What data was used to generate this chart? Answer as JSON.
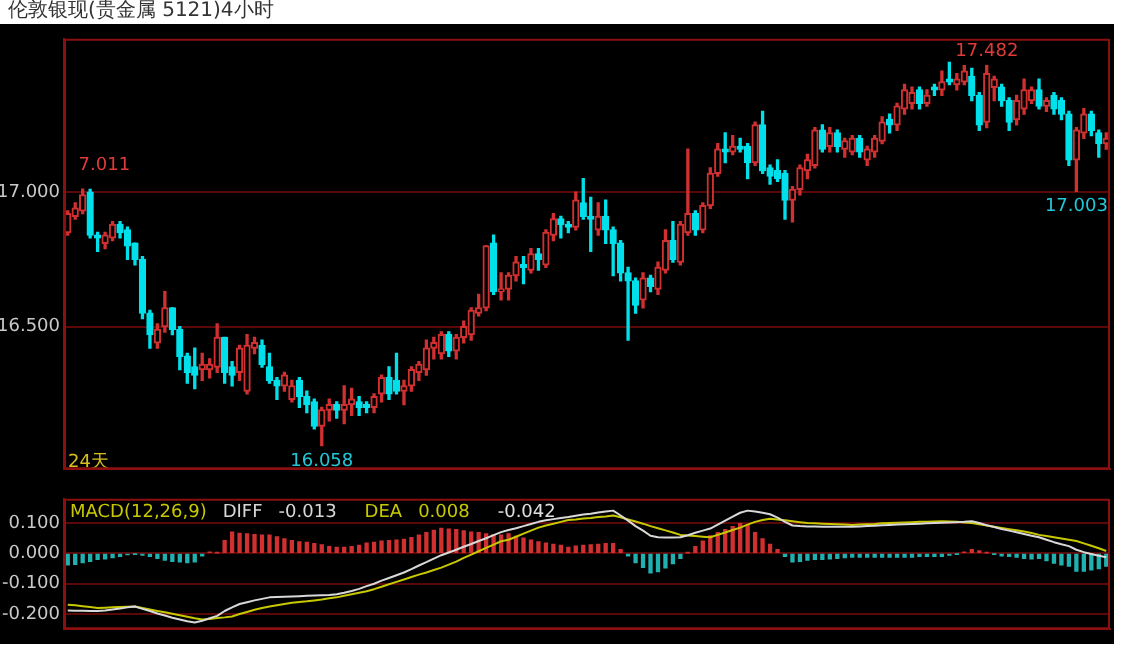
{
  "chart_data": [
    {
      "type": "candlestick",
      "title": "伦敦银现(贵金属 5121)4小时",
      "categories": [
        null,
        null,
        null,
        null,
        null,
        null,
        null,
        null,
        null,
        null,
        null,
        null,
        null,
        null,
        null,
        null,
        null,
        null,
        null,
        null,
        null,
        null,
        null,
        null,
        null,
        null,
        null,
        null,
        null,
        null,
        null,
        null,
        null,
        null,
        null,
        null,
        null,
        null,
        null,
        null,
        null,
        null,
        null,
        null,
        null,
        null,
        null,
        null,
        null,
        null,
        null,
        null,
        null,
        null,
        null,
        null,
        null,
        null,
        null,
        null,
        null,
        null,
        null,
        null,
        null,
        null,
        null,
        null,
        null,
        null,
        null,
        null,
        null,
        null,
        null,
        null,
        null,
        null,
        null,
        null,
        null,
        null,
        null,
        null,
        null,
        null,
        null,
        null,
        null,
        null,
        null,
        null,
        null,
        null,
        null,
        null,
        null,
        null,
        null,
        null,
        null,
        null,
        null,
        null,
        null,
        null,
        null,
        null,
        null,
        null,
        null,
        null,
        null,
        null,
        null,
        null,
        null,
        null,
        null,
        null,
        null,
        null,
        null,
        null,
        null,
        null,
        null,
        null,
        null,
        null,
        null,
        null,
        null,
        null,
        null,
        null,
        null,
        null,
        null,
        null
      ],
      "ohlc": [
        [
          16.85,
          16.93,
          16.84,
          16.92
        ],
        [
          16.91,
          16.96,
          16.9,
          16.94
        ],
        [
          16.93,
          17.011,
          16.92,
          16.99
        ],
        [
          17.0,
          17.01,
          16.83,
          16.84
        ],
        [
          16.84,
          16.85,
          16.78,
          16.83
        ],
        [
          16.81,
          16.85,
          16.79,
          16.84
        ],
        [
          16.83,
          16.89,
          16.82,
          16.88
        ],
        [
          16.88,
          16.89,
          16.83,
          16.85
        ],
        [
          16.86,
          16.87,
          16.75,
          16.8
        ],
        [
          16.81,
          16.81,
          16.73,
          16.75
        ],
        [
          16.75,
          16.76,
          16.53,
          16.55
        ],
        [
          16.55,
          16.56,
          16.42,
          16.47
        ],
        [
          16.44,
          16.51,
          16.42,
          16.49
        ],
        [
          16.5,
          16.63,
          16.48,
          16.57
        ],
        [
          16.57,
          16.57,
          16.47,
          16.49
        ],
        [
          16.49,
          16.5,
          16.34,
          16.39
        ],
        [
          16.39,
          16.4,
          16.29,
          16.33
        ],
        [
          16.35,
          16.42,
          16.27,
          16.32
        ],
        [
          16.34,
          16.4,
          16.3,
          16.36
        ],
        [
          16.34,
          16.38,
          16.31,
          16.36
        ],
        [
          16.35,
          16.51,
          16.33,
          16.46
        ],
        [
          16.46,
          16.46,
          16.29,
          16.33
        ],
        [
          16.35,
          16.37,
          16.28,
          16.32
        ],
        [
          16.33,
          16.43,
          16.3,
          16.42
        ],
        [
          16.26,
          16.47,
          16.25,
          16.43
        ],
        [
          16.42,
          16.46,
          16.4,
          16.44
        ],
        [
          16.43,
          16.45,
          16.35,
          16.36
        ],
        [
          16.35,
          16.4,
          16.29,
          16.3
        ],
        [
          16.3,
          16.31,
          16.23,
          16.28
        ],
        [
          16.28,
          16.33,
          16.26,
          16.32
        ],
        [
          16.23,
          16.3,
          16.22,
          16.28
        ],
        [
          16.3,
          16.31,
          16.2,
          16.24
        ],
        [
          16.24,
          16.26,
          16.18,
          16.21
        ],
        [
          16.22,
          16.23,
          16.12,
          16.13
        ],
        [
          16.13,
          16.2,
          16.058,
          16.19
        ],
        [
          16.19,
          16.23,
          16.15,
          16.21
        ],
        [
          16.21,
          16.22,
          16.16,
          16.19
        ],
        [
          16.19,
          16.28,
          16.14,
          16.21
        ],
        [
          16.21,
          16.27,
          16.17,
          16.23
        ],
        [
          16.22,
          16.24,
          16.17,
          16.2
        ],
        [
          16.21,
          16.22,
          16.18,
          16.2
        ],
        [
          16.2,
          16.25,
          16.18,
          16.24
        ],
        [
          16.25,
          16.32,
          16.22,
          16.31
        ],
        [
          16.31,
          16.35,
          16.23,
          16.25
        ],
        [
          16.3,
          16.4,
          16.25,
          16.26
        ],
        [
          16.26,
          16.3,
          16.21,
          16.28
        ],
        [
          16.28,
          16.35,
          16.26,
          16.34
        ],
        [
          16.33,
          16.37,
          16.3,
          16.36
        ],
        [
          16.34,
          16.45,
          16.32,
          16.42
        ],
        [
          16.42,
          16.46,
          16.38,
          16.44
        ],
        [
          16.4,
          16.48,
          16.38,
          16.47
        ],
        [
          16.47,
          16.48,
          16.39,
          16.41
        ],
        [
          16.41,
          16.47,
          16.38,
          16.46
        ],
        [
          16.46,
          16.52,
          16.44,
          16.5
        ],
        [
          16.47,
          16.57,
          16.45,
          16.56
        ],
        [
          16.55,
          16.62,
          16.54,
          16.57
        ],
        [
          16.57,
          16.8,
          16.56,
          16.8
        ],
        [
          16.81,
          16.84,
          16.62,
          16.63
        ],
        [
          16.63,
          16.7,
          16.6,
          16.64
        ],
        [
          16.64,
          16.7,
          16.6,
          16.69
        ],
        [
          16.69,
          16.76,
          16.67,
          16.74
        ],
        [
          16.73,
          16.76,
          16.66,
          16.72
        ],
        [
          16.71,
          16.79,
          16.7,
          16.77
        ],
        [
          16.77,
          16.79,
          16.71,
          16.75
        ],
        [
          16.73,
          16.86,
          16.72,
          16.85
        ],
        [
          16.84,
          16.92,
          16.82,
          16.9
        ],
        [
          16.9,
          16.91,
          16.83,
          16.88
        ],
        [
          16.88,
          16.89,
          16.85,
          16.87
        ],
        [
          16.87,
          17.0,
          16.86,
          16.97
        ],
        [
          16.96,
          17.05,
          16.9,
          16.91
        ],
        [
          16.91,
          16.98,
          16.78,
          16.9
        ],
        [
          16.86,
          16.96,
          16.84,
          16.91
        ],
        [
          16.91,
          16.97,
          16.81,
          16.86
        ],
        [
          16.86,
          16.87,
          16.69,
          16.81
        ],
        [
          16.81,
          16.82,
          16.67,
          16.7
        ],
        [
          16.7,
          16.72,
          16.45,
          16.67
        ],
        [
          16.67,
          16.68,
          16.55,
          16.58
        ],
        [
          16.6,
          16.7,
          16.57,
          16.68
        ],
        [
          16.68,
          16.69,
          16.63,
          16.65
        ],
        [
          16.64,
          16.74,
          16.62,
          16.72
        ],
        [
          16.71,
          16.86,
          16.7,
          16.82
        ],
        [
          16.82,
          16.89,
          16.74,
          16.75
        ],
        [
          16.74,
          16.89,
          16.73,
          16.88
        ],
        [
          16.85,
          17.16,
          16.84,
          16.92
        ],
        [
          16.92,
          16.93,
          16.84,
          16.86
        ],
        [
          16.86,
          16.96,
          16.85,
          16.95
        ],
        [
          16.95,
          17.09,
          16.94,
          17.07
        ],
        [
          17.07,
          17.18,
          17.06,
          17.16
        ],
        [
          17.16,
          17.22,
          17.11,
          17.15
        ],
        [
          17.15,
          17.21,
          17.14,
          17.17
        ],
        [
          17.17,
          17.2,
          17.15,
          17.16
        ],
        [
          17.17,
          17.18,
          17.05,
          17.11
        ],
        [
          17.11,
          17.26,
          17.1,
          17.25
        ],
        [
          17.25,
          17.3,
          17.07,
          17.08
        ],
        [
          17.09,
          17.1,
          17.03,
          17.06
        ],
        [
          17.08,
          17.12,
          17.04,
          17.05
        ],
        [
          17.07,
          17.08,
          16.9,
          16.97
        ],
        [
          16.97,
          17.02,
          16.89,
          17.01
        ],
        [
          17.01,
          17.1,
          16.99,
          17.09
        ],
        [
          17.08,
          17.14,
          17.05,
          17.12
        ],
        [
          17.1,
          17.24,
          17.09,
          17.23
        ],
        [
          17.23,
          17.25,
          17.15,
          17.16
        ],
        [
          17.17,
          17.24,
          17.15,
          17.22
        ],
        [
          17.22,
          17.23,
          17.15,
          17.17
        ],
        [
          17.16,
          17.2,
          17.13,
          17.19
        ],
        [
          17.15,
          17.21,
          17.14,
          17.2
        ],
        [
          17.2,
          17.21,
          17.13,
          17.15
        ],
        [
          17.12,
          17.17,
          17.1,
          17.16
        ],
        [
          17.15,
          17.21,
          17.13,
          17.2
        ],
        [
          17.19,
          17.28,
          17.18,
          17.26
        ],
        [
          17.27,
          17.29,
          17.22,
          17.25
        ],
        [
          17.25,
          17.33,
          17.23,
          17.32
        ],
        [
          17.31,
          17.4,
          17.29,
          17.38
        ],
        [
          17.33,
          17.39,
          17.31,
          17.37
        ],
        [
          17.38,
          17.39,
          17.31,
          17.33
        ],
        [
          17.33,
          17.38,
          17.32,
          17.36
        ],
        [
          17.39,
          17.4,
          17.36,
          17.38
        ],
        [
          17.38,
          17.45,
          17.36,
          17.41
        ],
        [
          17.42,
          17.482,
          17.4,
          17.41
        ],
        [
          17.4,
          17.44,
          17.38,
          17.42
        ],
        [
          17.41,
          17.47,
          17.4,
          17.45
        ],
        [
          17.43,
          17.46,
          17.34,
          17.36
        ],
        [
          17.36,
          17.37,
          17.23,
          17.25
        ],
        [
          17.26,
          17.47,
          17.24,
          17.44
        ],
        [
          17.39,
          17.43,
          17.34,
          17.42
        ],
        [
          17.39,
          17.4,
          17.32,
          17.34
        ],
        [
          17.34,
          17.35,
          17.23,
          17.26
        ],
        [
          17.27,
          17.36,
          17.25,
          17.34
        ],
        [
          17.31,
          17.42,
          17.29,
          17.38
        ],
        [
          17.34,
          17.39,
          17.33,
          17.38
        ],
        [
          17.38,
          17.42,
          17.31,
          17.32
        ],
        [
          17.32,
          17.35,
          17.3,
          17.34
        ],
        [
          17.36,
          17.37,
          17.29,
          17.31
        ],
        [
          17.34,
          17.35,
          17.27,
          17.29
        ],
        [
          17.29,
          17.3,
          17.1,
          17.12
        ],
        [
          17.12,
          17.24,
          17.003,
          17.23
        ],
        [
          17.22,
          17.31,
          17.2,
          17.29
        ],
        [
          17.29,
          17.3,
          17.21,
          17.23
        ],
        [
          17.22,
          17.23,
          17.13,
          17.18
        ],
        [
          17.18,
          17.22,
          17.16,
          17.2
        ]
      ],
      "ylim": [
        15.97,
        17.57
      ],
      "yticks": [
        {
          "value": 16.5,
          "label": "16.500"
        },
        {
          "value": 17,
          "label": "17.000"
        }
      ],
      "grid": "y",
      "tick_labels": "y",
      "annotations": [
        "7.011",
        {
          "text": "16.058",
          "y": 16.058
        },
        {
          "text": "17.482",
          "y": 17.482
        },
        {
          "text": "17.003",
          "y": 17.003
        },
        "24天"
      ]
    },
    {
      "type": "bar",
      "title": "MACD(12,26,9)",
      "categories": [
        null,
        null,
        null,
        null,
        null,
        null,
        null,
        null,
        null,
        null,
        null,
        null,
        null,
        null,
        null,
        null,
        null,
        null,
        null,
        null,
        null,
        null,
        null,
        null,
        null,
        null,
        null,
        null,
        null,
        null,
        null,
        null,
        null,
        null,
        null,
        null,
        null,
        null,
        null,
        null,
        null,
        null,
        null,
        null,
        null,
        null,
        null,
        null,
        null,
        null,
        null,
        null,
        null,
        null,
        null,
        null,
        null,
        null,
        null,
        null,
        null,
        null,
        null,
        null,
        null,
        null,
        null,
        null,
        null,
        null,
        null,
        null,
        null,
        null,
        null,
        null,
        null,
        null,
        null,
        null,
        null,
        null,
        null,
        null,
        null,
        null,
        null,
        null,
        null,
        null,
        null,
        null,
        null,
        null,
        null,
        null,
        null,
        null,
        null,
        null,
        null,
        null,
        null,
        null,
        null,
        null,
        null,
        null,
        null,
        null,
        null,
        null,
        null,
        null,
        null,
        null,
        null,
        null,
        null,
        null,
        null,
        null,
        null,
        null,
        null,
        null,
        null,
        null,
        null,
        null,
        null,
        null,
        null,
        null,
        null,
        null,
        null,
        null,
        null,
        null
      ],
      "series": [
        {
          "type": "bar",
          "colors": [
            "#20b0b0",
            "#20b0b0",
            "#20b0b0",
            "#20b0b0",
            "#20b0b0",
            "#20b0b0",
            "#20b0b0",
            "#20b0b0",
            "#20b0b0",
            "#20b0b0",
            "#20b0b0",
            "#20b0b0",
            "#20b0b0",
            "#20b0b0",
            "#20b0b0",
            "#20b0b0",
            "#20b0b0",
            "#20b0b0",
            "#20b0b0",
            "#d03030",
            "#d03030",
            "#d03030",
            "#d03030",
            "#d03030",
            "#d03030",
            "#d03030",
            "#d03030",
            "#d03030",
            "#d03030",
            "#d03030",
            "#d03030",
            "#d03030",
            "#d03030",
            "#d03030",
            "#d03030",
            "#d03030",
            "#d03030",
            "#d03030",
            "#d03030",
            "#d03030",
            "#d03030",
            "#d03030",
            "#d03030",
            "#d03030",
            "#d03030",
            "#d03030",
            "#d03030",
            "#d03030",
            "#d03030",
            "#d03030",
            "#d03030",
            "#d03030",
            "#d03030",
            "#d03030",
            "#d03030",
            "#d03030",
            "#d03030",
            "#d03030",
            "#d03030",
            "#d03030",
            "#d03030",
            "#d03030",
            "#d03030",
            "#d03030",
            "#d03030",
            "#d03030",
            "#d03030",
            "#d03030",
            "#d03030",
            "#d03030",
            "#d03030",
            "#d03030",
            "#d03030",
            "#d03030",
            "#d03030",
            "#20b0b0",
            "#20b0b0",
            "#20b0b0",
            "#20b0b0",
            "#20b0b0",
            "#20b0b0",
            "#20b0b0",
            "#20b0b0",
            "#d03030",
            "#d03030",
            "#d03030",
            "#d03030",
            "#d03030",
            "#d03030",
            "#d03030",
            "#d03030",
            "#d03030",
            "#d03030",
            "#d03030",
            "#d03030",
            "#d03030",
            "#20b0b0",
            "#20b0b0",
            "#20b0b0",
            "#20b0b0",
            "#20b0b0",
            "#20b0b0",
            "#20b0b0",
            "#20b0b0",
            "#20b0b0",
            "#20b0b0",
            "#20b0b0",
            "#20b0b0",
            "#20b0b0",
            "#20b0b0",
            "#20b0b0",
            "#20b0b0",
            "#20b0b0",
            "#20b0b0",
            "#20b0b0",
            "#20b0b0",
            "#20b0b0",
            "#20b0b0",
            "#20b0b0",
            "#20b0b0",
            "#d03030",
            "#d03030",
            "#d03030",
            "#d03030",
            "#20b0b0",
            "#20b0b0",
            "#20b0b0",
            "#20b0b0",
            "#20b0b0",
            "#20b0b0",
            "#20b0b0",
            "#20b0b0",
            "#20b0b0",
            "#20b0b0",
            "#20b0b0",
            "#20b0b0",
            "#20b0b0",
            "#20b0b0",
            "#20b0b0",
            "#20b0b0"
          ],
          "values": [
            -0.038,
            -0.036,
            -0.03,
            -0.026,
            -0.02,
            -0.018,
            -0.014,
            -0.01,
            -0.004,
            -0.002,
            -0.006,
            -0.01,
            -0.016,
            -0.022,
            -0.026,
            -0.028,
            -0.03,
            -0.028,
            -0.008,
            0.004,
            0.002,
            0.042,
            0.07,
            0.066,
            0.064,
            0.062,
            0.06,
            0.06,
            0.054,
            0.048,
            0.042,
            0.038,
            0.036,
            0.032,
            0.028,
            0.022,
            0.02,
            0.02,
            0.022,
            0.026,
            0.034,
            0.036,
            0.04,
            0.042,
            0.044,
            0.046,
            0.052,
            0.06,
            0.068,
            0.076,
            0.082,
            0.08,
            0.078,
            0.074,
            0.07,
            0.068,
            0.064,
            0.062,
            0.06,
            0.064,
            0.056,
            0.05,
            0.044,
            0.038,
            0.034,
            0.03,
            0.026,
            0.02,
            0.024,
            0.026,
            0.028,
            0.03,
            0.032,
            0.032,
            0.012,
            -0.008,
            -0.03,
            -0.046,
            -0.064,
            -0.06,
            -0.048,
            -0.034,
            -0.016,
            0.002,
            0.022,
            0.04,
            0.058,
            0.068,
            0.078,
            0.088,
            0.098,
            0.092,
            0.068,
            0.048,
            0.03,
            0.012,
            -0.01,
            -0.028,
            -0.026,
            -0.022,
            -0.02,
            -0.02,
            -0.018,
            -0.016,
            -0.014,
            -0.012,
            -0.012,
            -0.012,
            -0.012,
            -0.012,
            -0.012,
            -0.012,
            -0.012,
            -0.012,
            -0.01,
            -0.01,
            -0.01,
            -0.01,
            -0.006,
            -0.002,
            0.004,
            0.012,
            0.008,
            0.002,
            -0.002,
            -0.008,
            -0.01,
            -0.012,
            -0.016,
            -0.018,
            -0.016,
            -0.024,
            -0.032,
            -0.038,
            -0.042,
            -0.058,
            -0.058,
            -0.054,
            -0.05,
            -0.042
          ]
        },
        {
          "type": "line",
          "name": "DIFF",
          "color": "#d8d8d8",
          "values": [
            -0.188,
            -0.189,
            -0.189,
            -0.19,
            -0.19,
            -0.188,
            -0.185,
            -0.182,
            -0.178,
            -0.175,
            -0.183,
            -0.19,
            -0.198,
            -0.205,
            -0.212,
            -0.218,
            -0.224,
            -0.228,
            -0.222,
            -0.214,
            -0.206,
            -0.19,
            -0.178,
            -0.167,
            -0.161,
            -0.155,
            -0.15,
            -0.145,
            -0.144,
            -0.143,
            -0.142,
            -0.141,
            -0.14,
            -0.139,
            -0.138,
            -0.137,
            -0.135,
            -0.13,
            -0.124,
            -0.117,
            -0.108,
            -0.1,
            -0.09,
            -0.081,
            -0.072,
            -0.063,
            -0.052,
            -0.04,
            -0.029,
            -0.017,
            -0.006,
            0.003,
            0.012,
            0.022,
            0.031,
            0.041,
            0.05,
            0.06,
            0.07,
            0.077,
            0.083,
            0.09,
            0.097,
            0.104,
            0.109,
            0.113,
            0.117,
            0.12,
            0.124,
            0.128,
            0.131,
            0.135,
            0.138,
            0.141,
            0.125,
            0.108,
            0.09,
            0.075,
            0.058,
            0.053,
            0.052,
            0.052,
            0.053,
            0.06,
            0.068,
            0.075,
            0.082,
            0.095,
            0.108,
            0.121,
            0.134,
            0.141,
            0.138,
            0.134,
            0.129,
            0.118,
            0.104,
            0.092,
            0.09,
            0.089,
            0.089,
            0.088,
            0.088,
            0.088,
            0.088,
            0.088,
            0.089,
            0.09,
            0.091,
            0.093,
            0.094,
            0.095,
            0.096,
            0.097,
            0.098,
            0.099,
            0.1,
            0.101,
            0.102,
            0.103,
            0.104,
            0.106,
            0.1,
            0.093,
            0.087,
            0.08,
            0.075,
            0.07,
            0.064,
            0.058,
            0.053,
            0.045,
            0.037,
            0.03,
            0.024,
            0.012,
            0.004,
            -0.002,
            -0.008,
            -0.013
          ]
        },
        {
          "type": "line",
          "name": "DEA",
          "color": "#c8c800",
          "values": [
            -0.169,
            -0.171,
            -0.174,
            -0.177,
            -0.18,
            -0.179,
            -0.178,
            -0.177,
            -0.176,
            -0.175,
            -0.18,
            -0.185,
            -0.19,
            -0.194,
            -0.199,
            -0.204,
            -0.209,
            -0.214,
            -0.218,
            -0.216,
            -0.213,
            -0.211,
            -0.208,
            -0.2,
            -0.193,
            -0.186,
            -0.18,
            -0.175,
            -0.171,
            -0.167,
            -0.163,
            -0.16,
            -0.158,
            -0.155,
            -0.152,
            -0.148,
            -0.145,
            -0.14,
            -0.135,
            -0.13,
            -0.125,
            -0.118,
            -0.11,
            -0.102,
            -0.094,
            -0.086,
            -0.078,
            -0.07,
            -0.063,
            -0.055,
            -0.047,
            -0.037,
            -0.027,
            -0.015,
            -0.004,
            0.007,
            0.018,
            0.029,
            0.04,
            0.045,
            0.055,
            0.065,
            0.075,
            0.085,
            0.092,
            0.098,
            0.104,
            0.11,
            0.112,
            0.115,
            0.117,
            0.12,
            0.122,
            0.125,
            0.119,
            0.112,
            0.105,
            0.098,
            0.09,
            0.083,
            0.076,
            0.069,
            0.061,
            0.059,
            0.057,
            0.055,
            0.053,
            0.061,
            0.069,
            0.077,
            0.085,
            0.095,
            0.104,
            0.11,
            0.114,
            0.112,
            0.109,
            0.106,
            0.103,
            0.1,
            0.099,
            0.098,
            0.097,
            0.096,
            0.095,
            0.094,
            0.095,
            0.096,
            0.097,
            0.099,
            0.1,
            0.101,
            0.102,
            0.103,
            0.104,
            0.104,
            0.105,
            0.106,
            0.105,
            0.104,
            0.102,
            0.1,
            0.096,
            0.092,
            0.088,
            0.084,
            0.08,
            0.076,
            0.072,
            0.067,
            0.061,
            0.057,
            0.053,
            0.049,
            0.045,
            0.041,
            0.033,
            0.025,
            0.017,
            0.008
          ]
        }
      ],
      "ylim": [
        -0.25,
        0.18
      ],
      "yticks": [
        {
          "value": -0.2,
          "label": "-0.200"
        },
        {
          "value": -0.1,
          "label": "-0.100"
        },
        {
          "value": 0,
          "label": "0.000"
        },
        {
          "value": 0.1,
          "label": "0.100"
        }
      ],
      "grid": "y",
      "tick_labels": "y",
      "legend": "top left",
      "annotations": [
        "-0.013",
        "0.008",
        "-0.042"
      ]
    }
  ]
}
